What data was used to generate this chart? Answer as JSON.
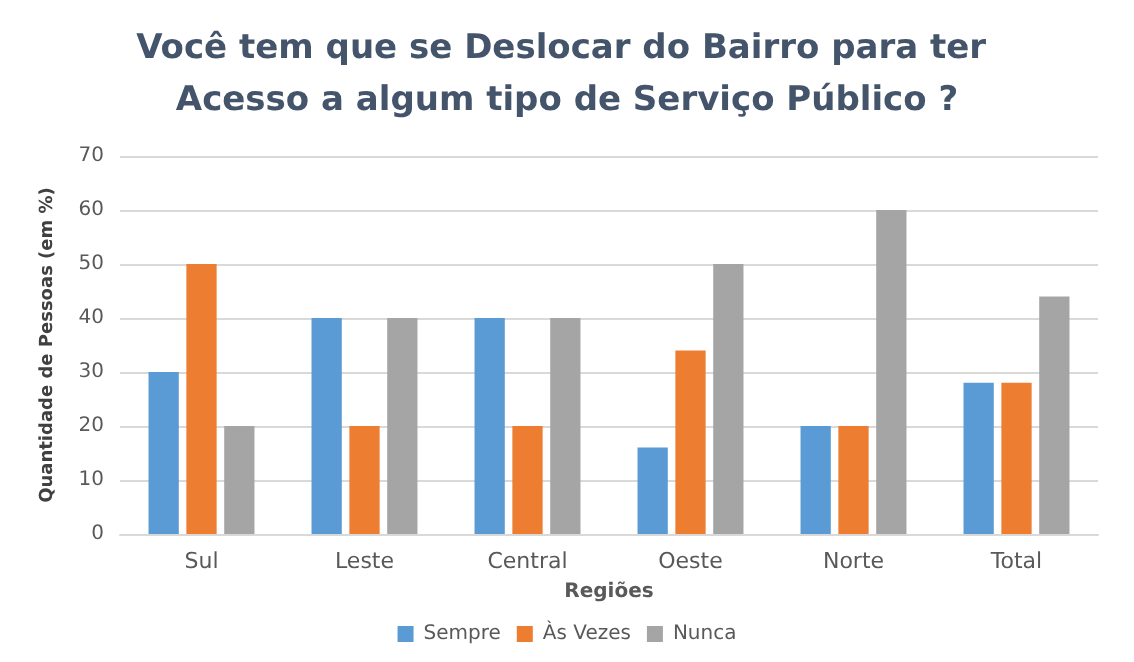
{
  "chart_data": {
    "type": "bar",
    "title": "Você tem que se Deslocar do Bairro para ter Acesso a algum tipo de Serviço Público ?",
    "xlabel": "Regiões",
    "ylabel": "Quantidade de Pessoas (em %)",
    "categories": [
      "Sul",
      "Leste",
      "Central",
      "Oeste",
      "Norte",
      "Total"
    ],
    "series": [
      {
        "name": "Sempre",
        "color": "#5b9bd5",
        "values": [
          30,
          40,
          40,
          16,
          20,
          28
        ]
      },
      {
        "name": "Às Vezes",
        "color": "#ed7d31",
        "values": [
          50,
          20,
          20,
          34,
          20,
          28
        ]
      },
      {
        "name": "Nunca",
        "color": "#a5a5a5",
        "values": [
          20,
          40,
          40,
          50,
          60,
          44
        ]
      }
    ],
    "ylim": [
      0,
      70
    ],
    "yticks": [
      0,
      10,
      20,
      30,
      40,
      50,
      60,
      70
    ],
    "grid": "y",
    "legend": "bottom"
  }
}
